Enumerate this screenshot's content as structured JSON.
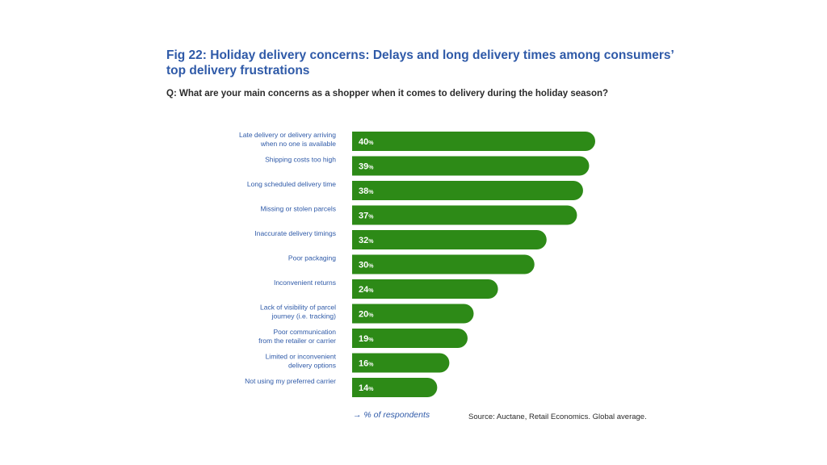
{
  "chart_data": {
    "type": "bar",
    "orientation": "horizontal",
    "title": "Fig 22: Holiday delivery concerns: Delays and long delivery times among consumers’ top delivery frustrations",
    "subtitle": "Q: What are your main concerns as a shopper when it comes to delivery during the holiday season?",
    "categories": [
      [
        "Late delivery or delivery arriving",
        "when no one is available"
      ],
      [
        "Shipping costs too high"
      ],
      [
        "Long scheduled delivery time"
      ],
      [
        "Missing or stolen parcels"
      ],
      [
        "Inaccurate delivery timings"
      ],
      [
        "Poor packaging"
      ],
      [
        "Inconvenient returns"
      ],
      [
        "Lack of visibility of parcel",
        "journey (i.e. tracking)"
      ],
      [
        "Poor communication",
        "from the retailer or carrier"
      ],
      [
        "Limited or inconvenient",
        "delivery options"
      ],
      [
        "Not using my preferred carrier"
      ]
    ],
    "values": [
      40,
      39,
      38,
      37,
      32,
      30,
      24,
      20,
      19,
      16,
      14
    ],
    "value_suffix": "%",
    "xlabel": "→ % of respondents",
    "ylabel": "",
    "xlim": [
      0,
      40
    ],
    "grid": false,
    "legend": "none",
    "source": "Source: Auctane, Retail Economics. Global average.",
    "colors": {
      "bar": "#2d8a17",
      "bar_label": "#ffffff",
      "category_label": "#2f5aa8",
      "title": "#2f5aa8"
    }
  }
}
